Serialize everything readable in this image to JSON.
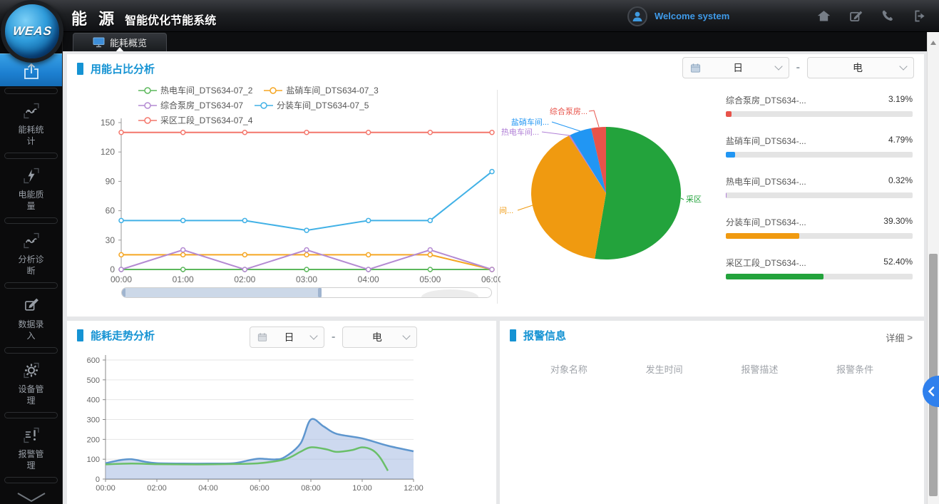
{
  "header": {
    "logo_text": "WEAS",
    "title_primary": "能 源",
    "title_secondary": "智能优化节能系统",
    "welcome_text": "Welcome system",
    "icons": [
      "home-icon",
      "edit-icon",
      "phone-icon",
      "logout-icon"
    ]
  },
  "tabs": [
    {
      "label": "能耗概览",
      "icon": "monitor-icon",
      "active": true
    }
  ],
  "sidebar": {
    "items": [
      {
        "label": "",
        "icon": "overview-icon",
        "active": true
      },
      {
        "label": "能耗统计",
        "icon": "trend-icon",
        "active": false
      },
      {
        "label": "电能质量",
        "icon": "bolt-icon",
        "active": false
      },
      {
        "label": "分析诊断",
        "icon": "diagnosis-icon",
        "active": false
      },
      {
        "label": "数据录入",
        "icon": "data-entry-icon",
        "active": false
      },
      {
        "label": "设备管理",
        "icon": "gear-icon",
        "active": false
      },
      {
        "label": "报警管理",
        "icon": "alarm-icon",
        "active": false
      }
    ],
    "expand_icon": "chevron-down-icon"
  },
  "proportion_panel": {
    "title": "用能占比分析",
    "period_value": "日",
    "separator": "-",
    "energy_value": "电",
    "list": [
      {
        "label": "综合泵房_DTS634-...",
        "value": "3.19%",
        "pct": 3.19,
        "color": "#e8534a"
      },
      {
        "label": "盐硝车间_DTS634-...",
        "value": "4.79%",
        "pct": 4.79,
        "color": "#2196f3"
      },
      {
        "label": "热电车间_DTS634-...",
        "value": "0.32%",
        "pct": 0.32,
        "color": "#b07fd6"
      },
      {
        "label": "分装车间_DTS634-...",
        "value": "39.30%",
        "pct": 39.3,
        "color": "#f09a10"
      },
      {
        "label": "采区工段_DTS634-...",
        "value": "52.40%",
        "pct": 52.4,
        "color": "#23a33c"
      }
    ]
  },
  "trend_panel": {
    "title": "能耗走势分析",
    "period_value": "日",
    "separator": "-",
    "energy_value": "电"
  },
  "alarm_panel": {
    "title": "报警信息",
    "detail_label": "详细",
    "detail_chevron": ">",
    "columns": [
      "对象名称",
      "发生时间",
      "报警描述",
      "报警条件"
    ],
    "rows": []
  },
  "chart_data": [
    {
      "id": "usage-proportion-line",
      "type": "line",
      "title": "用能占比分析",
      "x": [
        "00:00",
        "01:00",
        "02:00",
        "03:00",
        "04:00",
        "05:00",
        "06:00"
      ],
      "ylim": [
        0,
        150
      ],
      "yticks": [
        0,
        30,
        60,
        90,
        120,
        150
      ],
      "grid": false,
      "legend_position": "top",
      "series": [
        {
          "name": "热电车间_DTS634-07_2",
          "color": "#5cb85c",
          "values": [
            0,
            0,
            0,
            0,
            0,
            0,
            0
          ]
        },
        {
          "name": "盐硝车间_DTS634-07_3",
          "color": "#f5a623",
          "values": [
            15,
            15,
            15,
            15,
            15,
            15,
            0
          ]
        },
        {
          "name": "综合泵房_DTS634-07",
          "color": "#b48ad2",
          "values": [
            0,
            20,
            0,
            20,
            0,
            20,
            0
          ]
        },
        {
          "name": "分装车间_DTS634-07_5",
          "color": "#41b1e6",
          "values": [
            50,
            50,
            50,
            40,
            50,
            50,
            100
          ]
        },
        {
          "name": "采区工段_DTS634-07_4",
          "color": "#f4776c",
          "values": [
            140,
            140,
            140,
            140,
            140,
            140,
            140
          ]
        }
      ],
      "datazoom": {
        "start_pct": 0,
        "end_pct": 54
      }
    },
    {
      "id": "usage-proportion-pie",
      "type": "pie",
      "title": "用能占比",
      "slices": [
        {
          "name": "采区工段_DTS634-07_4",
          "label": "采区",
          "value": 52.4,
          "color": "#23a33c",
          "anchor": "start",
          "label_xy": [
            262,
            148
          ],
          "line_pts": [
            [
              255,
              143
            ],
            [
              259,
              145
            ]
          ]
        },
        {
          "name": "分装车间_DTS634-07_5",
          "label": "间...",
          "value": 39.3,
          "color": "#f09a10",
          "anchor": "start",
          "label_xy": [
            0,
            164
          ],
          "line_pts": [
            [
              47,
              153
            ],
            [
              26,
              160
            ]
          ]
        },
        {
          "name": "热电车间_DTS634-07_2",
          "label": "热电车间...",
          "value": 0.32,
          "color": "#b07fd6",
          "anchor": "end",
          "label_xy": [
            56,
            54
          ],
          "line_pts": [
            [
              99,
              55
            ],
            [
              60,
              50
            ]
          ]
        },
        {
          "name": "盐硝车间_DTS634-07_3",
          "label": "盐硝车间...",
          "value": 4.79,
          "color": "#2196f3",
          "anchor": "end",
          "label_xy": [
            70,
            40
          ],
          "line_pts": [
            [
              114,
              49
            ],
            [
              74,
              36
            ]
          ]
        },
        {
          "name": "综合泵房_DTS634-07",
          "label": "综合泵房...",
          "value": 3.19,
          "color": "#e8534a",
          "anchor": "end",
          "label_xy": [
            124,
            25
          ],
          "line_pts": [
            [
              140,
              43
            ],
            [
              133,
              20
            ],
            [
              126,
              21
            ]
          ]
        }
      ]
    },
    {
      "id": "energy-trend-area",
      "type": "area",
      "title": "能耗走势分析",
      "xlim": [
        0,
        12
      ],
      "xticks": [
        {
          "v": 0,
          "label": "00:00"
        },
        {
          "v": 2,
          "label": "02:00"
        },
        {
          "v": 4,
          "label": "04:00"
        },
        {
          "v": 6,
          "label": "06:00"
        },
        {
          "v": 8,
          "label": "08:00"
        },
        {
          "v": 10,
          "label": "10:00"
        },
        {
          "v": 12,
          "label": "12:00"
        }
      ],
      "ylim": [
        0,
        600
      ],
      "yticks": [
        0,
        100,
        200,
        300,
        400,
        500,
        600
      ],
      "grid": true,
      "series": [
        {
          "color": "#5e96ce",
          "fill": "rgba(164,186,226,0.55)",
          "smooth": true,
          "points": [
            [
              0,
              80
            ],
            [
              0.6,
              96
            ],
            [
              1,
              100
            ],
            [
              1.6,
              86
            ],
            [
              2,
              80
            ],
            [
              3,
              78
            ],
            [
              4,
              78
            ],
            [
              5,
              80
            ],
            [
              5.6,
              95
            ],
            [
              6,
              103
            ],
            [
              6.6,
              99
            ],
            [
              7,
              112
            ],
            [
              7.6,
              180
            ],
            [
              8,
              300
            ],
            [
              8.5,
              265
            ],
            [
              9,
              228
            ],
            [
              10,
              205
            ],
            [
              11,
              168
            ],
            [
              12,
              140
            ]
          ]
        },
        {
          "color": "#6abf69",
          "smooth": true,
          "points": [
            [
              0,
              74
            ],
            [
              1,
              78
            ],
            [
              2,
              75
            ],
            [
              3,
              74
            ],
            [
              4,
              74
            ],
            [
              5,
              76
            ],
            [
              6,
              80
            ],
            [
              7,
              100
            ],
            [
              7.6,
              138
            ],
            [
              8,
              160
            ],
            [
              8.6,
              150
            ],
            [
              9,
              137
            ],
            [
              9.6,
              146
            ],
            [
              10,
              160
            ],
            [
              10.4,
              146
            ],
            [
              10.7,
              108
            ],
            [
              11,
              42
            ]
          ]
        }
      ]
    }
  ]
}
